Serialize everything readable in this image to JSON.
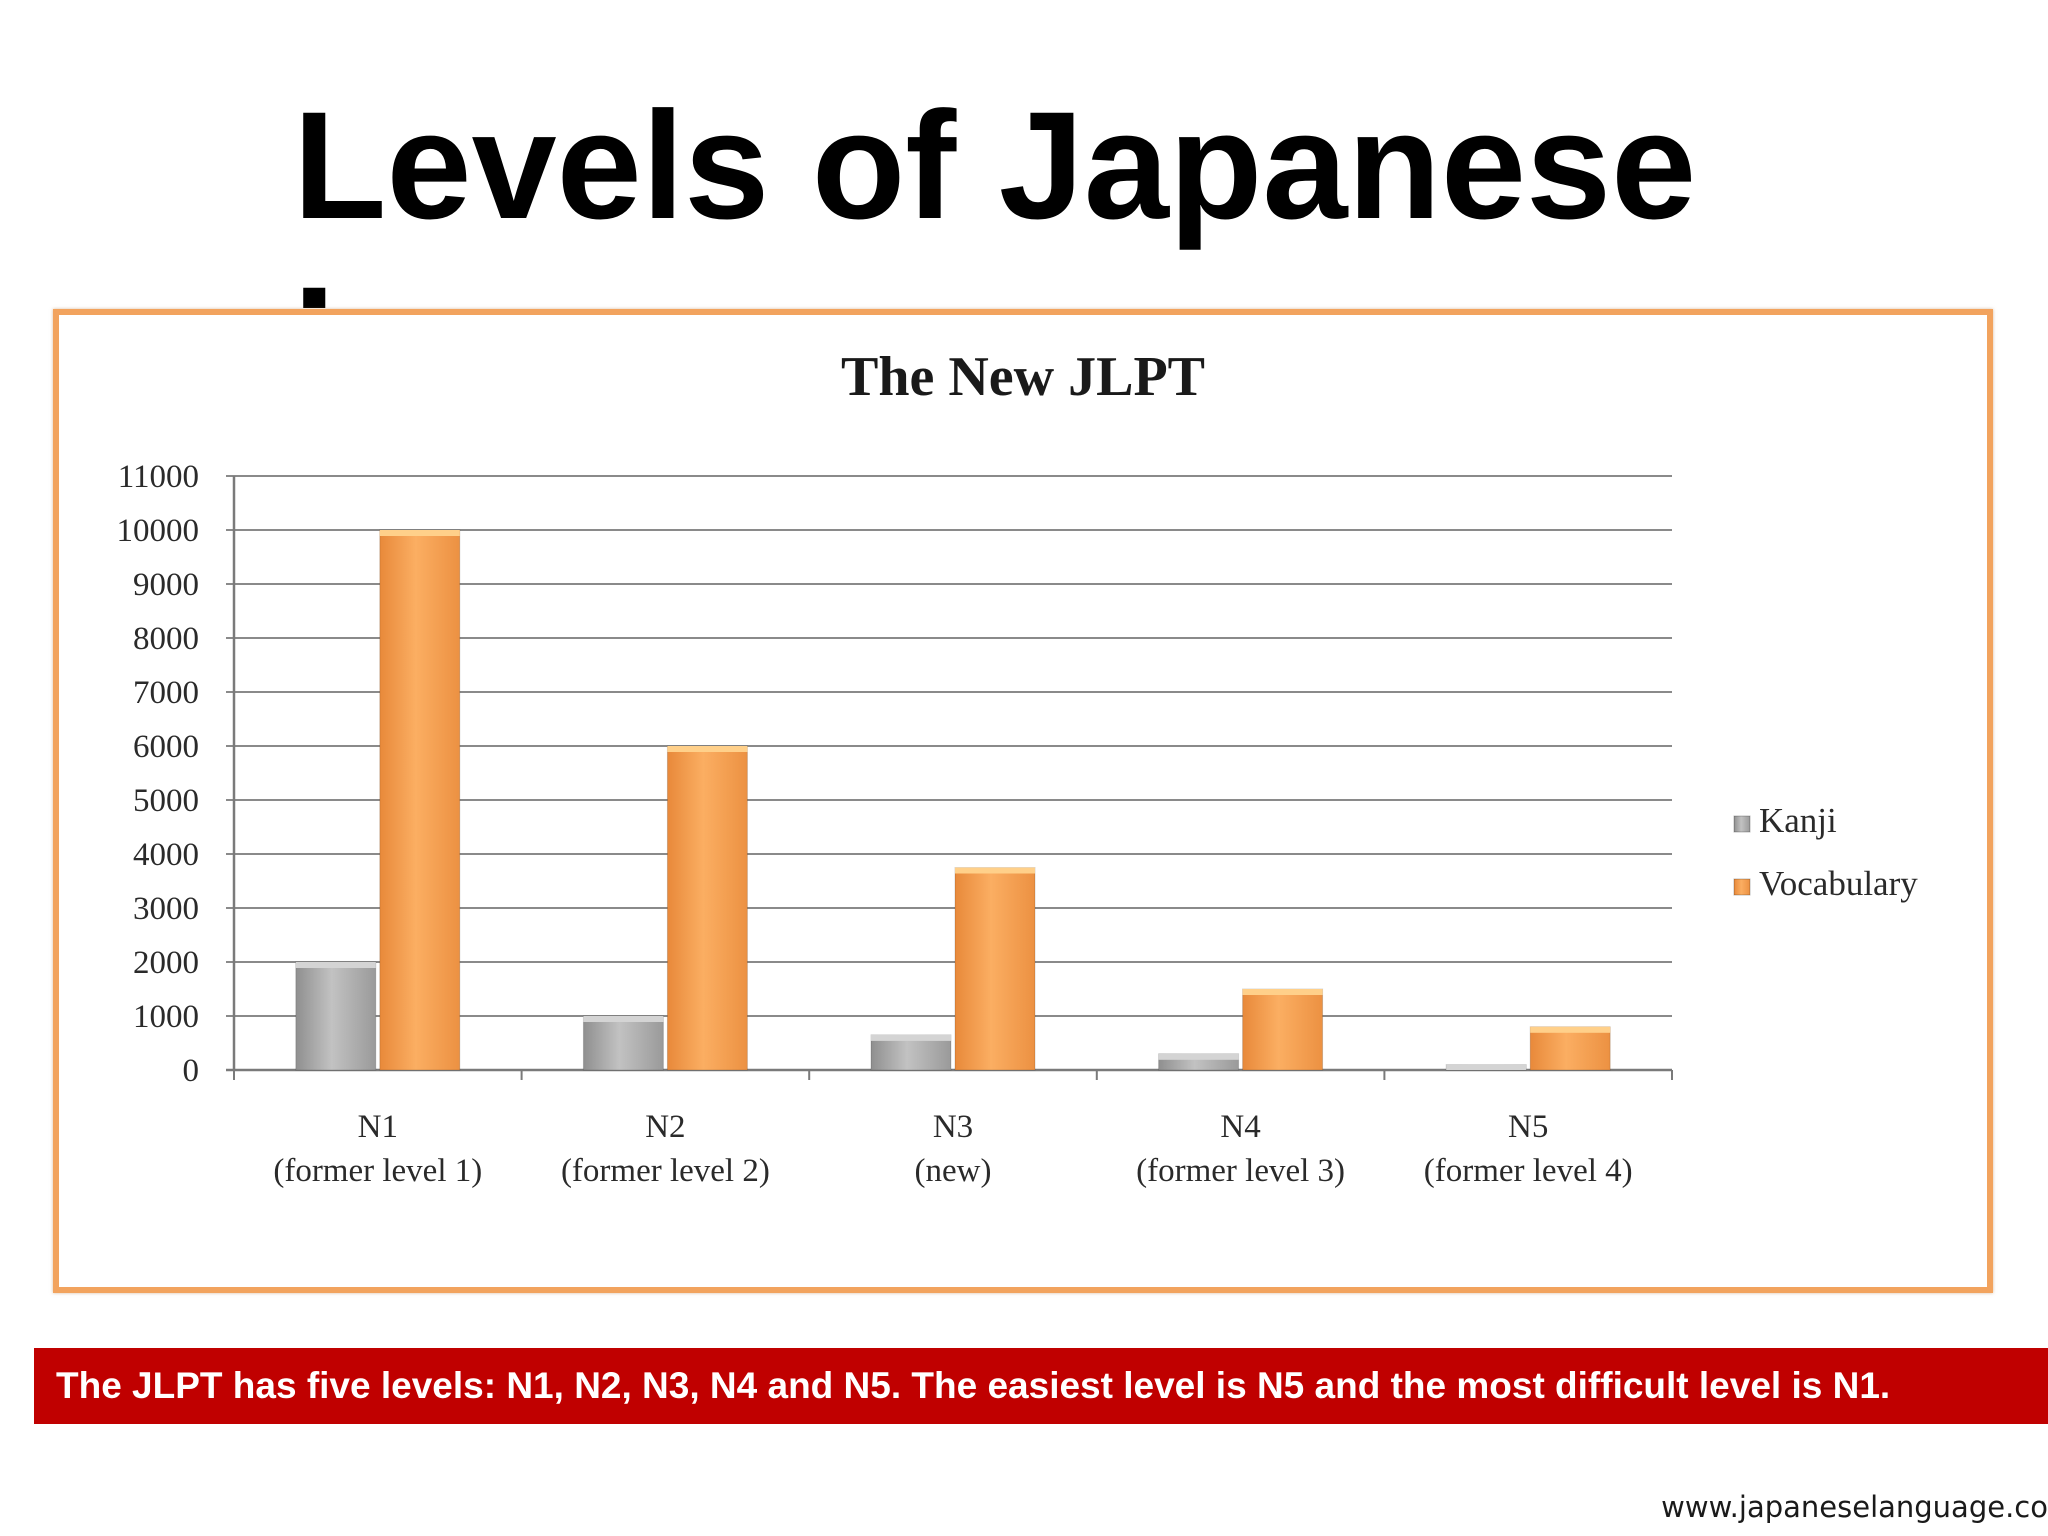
{
  "slide": {
    "title": "Levels of Japanese Language",
    "caption": "The JLPT has five levels: N1, N2, N3, N4 and N5. The easiest level is N5 and the most difficult level is N1.",
    "footer_url": "www.japaneselanguage.co"
  },
  "colors": {
    "frame_border": "#f2a35e",
    "caption_bg": "#c00000",
    "kanji": "#b0b0b0",
    "vocabulary": "#f7a14d"
  },
  "chart_data": {
    "type": "bar",
    "title": "The New JLPT",
    "xlabel": "",
    "ylabel": "",
    "ylim": [
      0,
      11000
    ],
    "yticks": [
      "0",
      "1000",
      "2000",
      "3000",
      "4000",
      "5000",
      "6000",
      "7000",
      "8000",
      "9000",
      "10000",
      "11000"
    ],
    "grid": true,
    "legend_position": "right",
    "categories": [
      {
        "name": "N1",
        "sub": "(former level 1)"
      },
      {
        "name": "N2",
        "sub": "(former level 2)"
      },
      {
        "name": "N3",
        "sub": "(new)"
      },
      {
        "name": "N4",
        "sub": "(former level 3)"
      },
      {
        "name": "N5",
        "sub": "(former level 4)"
      }
    ],
    "series": [
      {
        "name": "Kanji",
        "color": "#b0b0b0",
        "values": [
          2000,
          1000,
          650,
          300,
          100
        ]
      },
      {
        "name": "Vocabulary",
        "color": "#f7a14d",
        "values": [
          10000,
          6000,
          3750,
          1500,
          800
        ]
      }
    ]
  }
}
